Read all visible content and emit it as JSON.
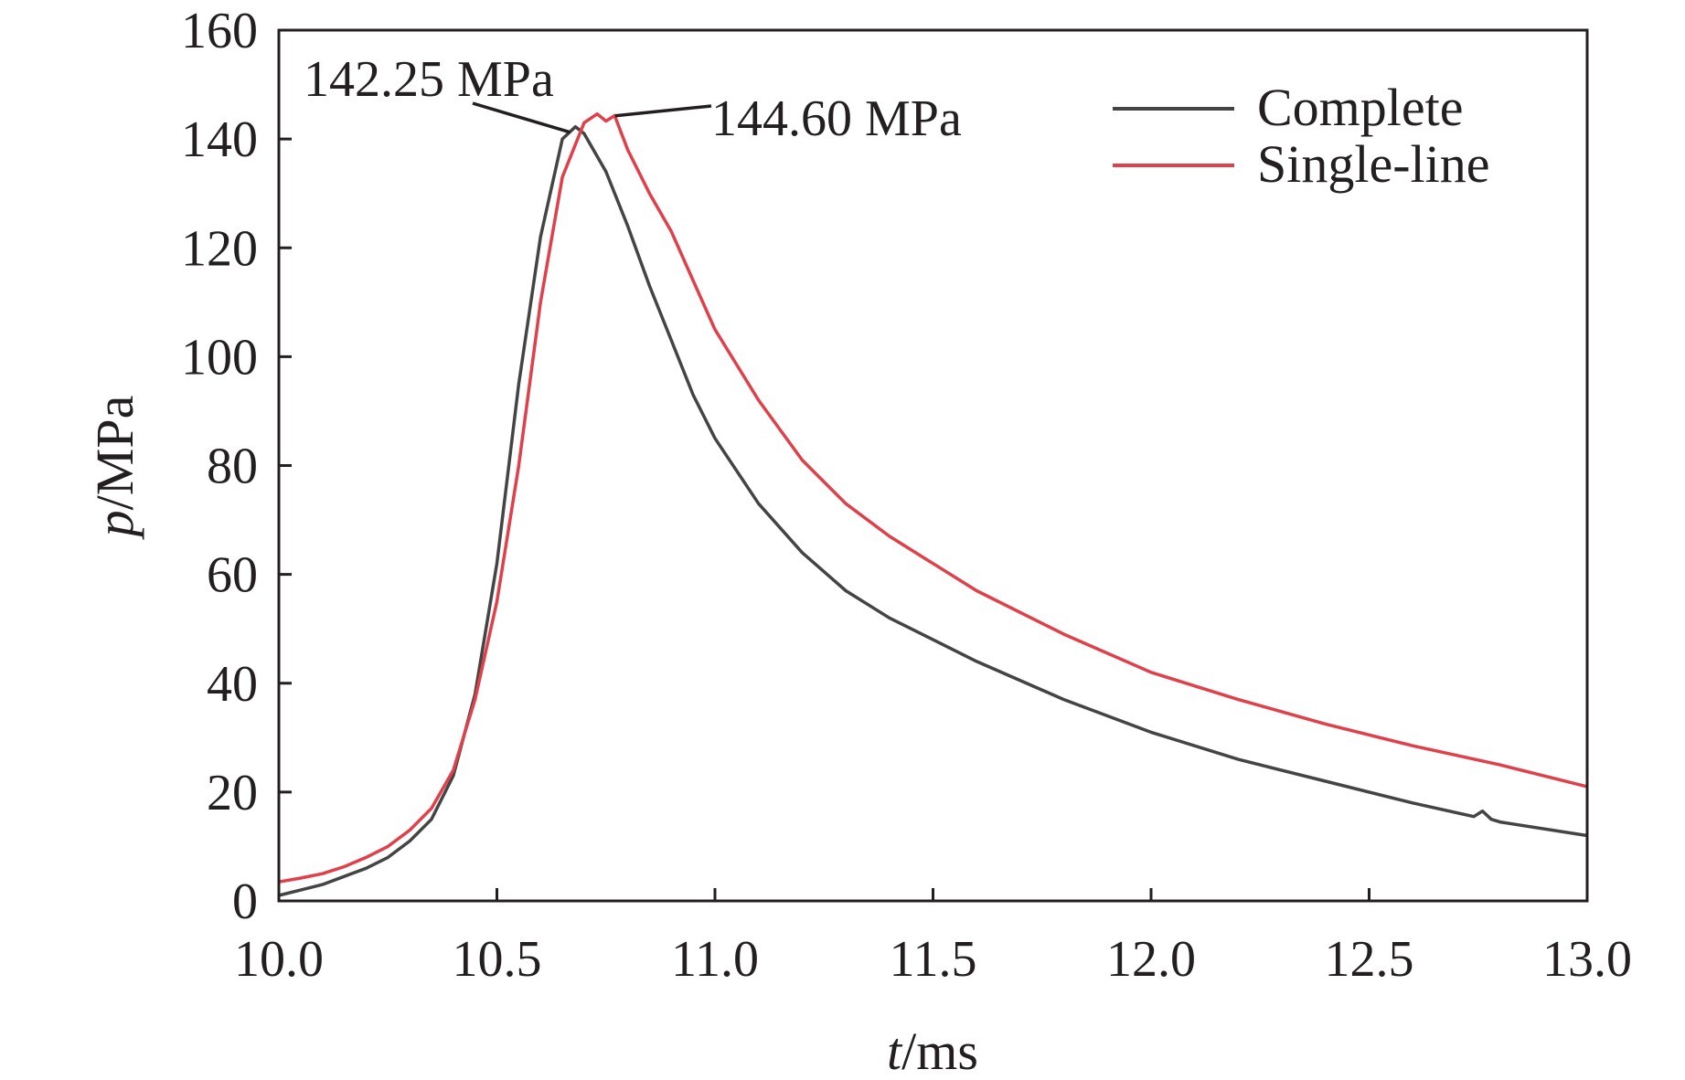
{
  "chart_data": {
    "type": "line",
    "title": "",
    "xlabel_italic": "t",
    "xlabel_unit": "/ms",
    "ylabel_italic": "p",
    "ylabel_unit": "/MPa",
    "xlim": [
      10.0,
      13.0
    ],
    "ylim": [
      0,
      160
    ],
    "xticks": [
      "10.0",
      "10.5",
      "11.0",
      "11.5",
      "12.0",
      "12.5",
      "13.0"
    ],
    "yticks": [
      "0",
      "20",
      "40",
      "60",
      "80",
      "100",
      "120",
      "140",
      "160"
    ],
    "grid": false,
    "legend_position": "top-right",
    "series": [
      {
        "name": "Complete",
        "color": "#444444",
        "x": [
          10.0,
          10.05,
          10.1,
          10.15,
          10.2,
          10.25,
          10.3,
          10.35,
          10.4,
          10.45,
          10.5,
          10.55,
          10.6,
          10.65,
          10.68,
          10.7,
          10.75,
          10.8,
          10.85,
          10.9,
          10.95,
          11.0,
          11.1,
          11.2,
          11.3,
          11.4,
          11.5,
          11.6,
          11.8,
          12.0,
          12.2,
          12.4,
          12.6,
          12.74,
          12.76,
          12.78,
          12.8,
          13.0
        ],
        "y": [
          1,
          2,
          3,
          4.5,
          6,
          8,
          11,
          15,
          23,
          38,
          62,
          95,
          122,
          140,
          142.25,
          141,
          134,
          124,
          113,
          103,
          93,
          85,
          73,
          64,
          57,
          52,
          48,
          44,
          37,
          31,
          26,
          22,
          18,
          15.5,
          16.5,
          15,
          14.5,
          12
        ]
      },
      {
        "name": "Single-line",
        "color": "#e0404a",
        "x": [
          10.0,
          10.05,
          10.1,
          10.15,
          10.2,
          10.25,
          10.3,
          10.35,
          10.4,
          10.45,
          10.5,
          10.55,
          10.6,
          10.65,
          10.7,
          10.73,
          10.75,
          10.77,
          10.8,
          10.85,
          10.9,
          10.95,
          11.0,
          11.1,
          11.2,
          11.3,
          11.4,
          11.5,
          11.6,
          11.8,
          12.0,
          12.2,
          12.4,
          12.6,
          12.8,
          13.0
        ],
        "y": [
          3.5,
          4.2,
          5,
          6.3,
          8,
          10,
          13,
          17,
          24,
          37,
          55,
          80,
          110,
          133,
          143,
          144.6,
          143.3,
          144.3,
          138,
          130,
          123,
          114,
          105,
          92,
          81,
          73,
          67,
          62,
          57,
          49,
          42,
          37,
          32.5,
          28.5,
          25,
          21
        ]
      }
    ],
    "annotations": [
      {
        "text": "142.25 MPa",
        "series": "Complete",
        "x": 10.68,
        "y": 142.25
      },
      {
        "text": "144.60 MPa",
        "series": "Single-line",
        "x": 10.75,
        "y": 144.6
      }
    ]
  }
}
